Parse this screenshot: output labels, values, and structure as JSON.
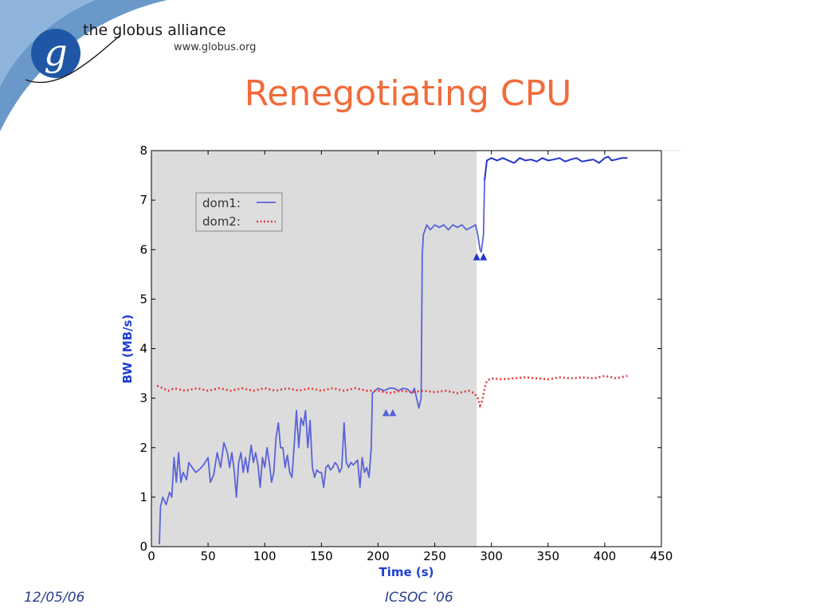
{
  "logo": {
    "letter": "g",
    "name": "the globus alliance",
    "url": "www.globus.org"
  },
  "slide": {
    "title": "Renegotiating CPU"
  },
  "footer": {
    "date": "12/05/06",
    "conference": "ICSOC ‘06"
  },
  "colors": {
    "title": "#f26b3a",
    "footer": "#2a3f8f",
    "dom1": "#5a63d8",
    "dom1_after": "#2233cc",
    "dom2": "#e03a3a",
    "shade": "#dcdcdc",
    "axis_label": "#1f3fd0"
  },
  "chart_data": {
    "type": "line",
    "title": "",
    "xlabel": "Time (s)",
    "ylabel": "BW (MB/s)",
    "xlim": [
      0,
      450
    ],
    "ylim": [
      0,
      8
    ],
    "xticks": [
      0,
      50,
      100,
      150,
      200,
      250,
      300,
      350,
      400,
      450
    ],
    "yticks": [
      0,
      1,
      2,
      3,
      4,
      5,
      6,
      7,
      8
    ],
    "grid": false,
    "legend_position": "top-left",
    "shaded_region": {
      "x": [
        0,
        287
      ],
      "color": "#dcdcdc"
    },
    "markers": [
      {
        "x": 207,
        "y": 2.7,
        "shape": "triangle"
      },
      {
        "x": 213,
        "y": 2.7,
        "shape": "triangle"
      },
      {
        "x": 287,
        "y": 5.85,
        "shape": "triangle"
      },
      {
        "x": 293,
        "y": 5.85,
        "shape": "triangle"
      }
    ],
    "series": [
      {
        "name": "dom1",
        "legend_label": "dom1:",
        "style": "solid",
        "points": [
          [
            7,
            0.05
          ],
          [
            8,
            0.8
          ],
          [
            10,
            1.0
          ],
          [
            13,
            0.85
          ],
          [
            16,
            1.1
          ],
          [
            18,
            1.0
          ],
          [
            20,
            1.8
          ],
          [
            22,
            1.3
          ],
          [
            24,
            1.9
          ],
          [
            26,
            1.3
          ],
          [
            28,
            1.5
          ],
          [
            31,
            1.35
          ],
          [
            33,
            1.7
          ],
          [
            36,
            1.6
          ],
          [
            39,
            1.5
          ],
          [
            42,
            1.55
          ],
          [
            46,
            1.65
          ],
          [
            50,
            1.8
          ],
          [
            52,
            1.3
          ],
          [
            55,
            1.45
          ],
          [
            58,
            1.9
          ],
          [
            61,
            1.6
          ],
          [
            64,
            2.1
          ],
          [
            67,
            1.9
          ],
          [
            69,
            1.6
          ],
          [
            71,
            1.9
          ],
          [
            73,
            1.55
          ],
          [
            75,
            1.0
          ],
          [
            77,
            1.7
          ],
          [
            79,
            1.9
          ],
          [
            81,
            1.5
          ],
          [
            83,
            1.8
          ],
          [
            85,
            1.5
          ],
          [
            88,
            2.05
          ],
          [
            90,
            1.7
          ],
          [
            92,
            1.9
          ],
          [
            94,
            1.65
          ],
          [
            96,
            1.2
          ],
          [
            98,
            1.8
          ],
          [
            100,
            1.6
          ],
          [
            102,
            2.0
          ],
          [
            104,
            1.7
          ],
          [
            106,
            1.3
          ],
          [
            108,
            1.5
          ],
          [
            110,
            2.2
          ],
          [
            112,
            2.5
          ],
          [
            114,
            2.0
          ],
          [
            116,
            2.0
          ],
          [
            118,
            1.6
          ],
          [
            120,
            1.85
          ],
          [
            122,
            1.5
          ],
          [
            124,
            1.4
          ],
          [
            126,
            2.05
          ],
          [
            128,
            2.75
          ],
          [
            130,
            2.0
          ],
          [
            132,
            2.6
          ],
          [
            134,
            2.45
          ],
          [
            136,
            2.75
          ],
          [
            138,
            2.0
          ],
          [
            140,
            2.55
          ],
          [
            142,
            1.6
          ],
          [
            144,
            1.4
          ],
          [
            146,
            1.55
          ],
          [
            148,
            1.5
          ],
          [
            150,
            1.5
          ],
          [
            152,
            1.2
          ],
          [
            154,
            1.6
          ],
          [
            156,
            1.65
          ],
          [
            158,
            1.55
          ],
          [
            160,
            1.6
          ],
          [
            162,
            1.7
          ],
          [
            164,
            1.65
          ],
          [
            166,
            1.5
          ],
          [
            168,
            1.6
          ],
          [
            170,
            2.5
          ],
          [
            172,
            1.7
          ],
          [
            174,
            1.6
          ],
          [
            176,
            1.7
          ],
          [
            178,
            1.65
          ],
          [
            180,
            1.7
          ],
          [
            182,
            1.75
          ],
          [
            184,
            1.2
          ],
          [
            186,
            1.8
          ],
          [
            188,
            1.5
          ],
          [
            190,
            1.6
          ],
          [
            192,
            1.4
          ],
          [
            194,
            2.0
          ],
          [
            195,
            3.1
          ],
          [
            200,
            3.2
          ],
          [
            205,
            3.15
          ],
          [
            210,
            3.2
          ],
          [
            214,
            3.2
          ],
          [
            218,
            3.15
          ],
          [
            222,
            3.2
          ],
          [
            226,
            3.18
          ],
          [
            230,
            3.1
          ],
          [
            232,
            3.2
          ],
          [
            234,
            3.0
          ],
          [
            236,
            2.8
          ],
          [
            238,
            3.0
          ],
          [
            239,
            5.9
          ],
          [
            240,
            6.3
          ],
          [
            243,
            6.5
          ],
          [
            246,
            6.4
          ],
          [
            250,
            6.5
          ],
          [
            254,
            6.45
          ],
          [
            258,
            6.5
          ],
          [
            262,
            6.4
          ],
          [
            266,
            6.5
          ],
          [
            270,
            6.45
          ],
          [
            274,
            6.5
          ],
          [
            278,
            6.4
          ],
          [
            282,
            6.45
          ],
          [
            286,
            6.5
          ],
          [
            288,
            6.3
          ],
          [
            290,
            6.0
          ],
          [
            291,
            5.95
          ],
          [
            293,
            6.3
          ],
          [
            294,
            7.4
          ],
          [
            296,
            7.8
          ],
          [
            300,
            7.85
          ],
          [
            305,
            7.8
          ],
          [
            310,
            7.85
          ],
          [
            315,
            7.8
          ],
          [
            320,
            7.75
          ],
          [
            325,
            7.85
          ],
          [
            330,
            7.8
          ],
          [
            335,
            7.82
          ],
          [
            340,
            7.78
          ],
          [
            345,
            7.85
          ],
          [
            350,
            7.8
          ],
          [
            355,
            7.82
          ],
          [
            360,
            7.85
          ],
          [
            365,
            7.78
          ],
          [
            370,
            7.82
          ],
          [
            375,
            7.85
          ],
          [
            380,
            7.78
          ],
          [
            385,
            7.8
          ],
          [
            390,
            7.82
          ],
          [
            395,
            7.75
          ],
          [
            400,
            7.85
          ],
          [
            403,
            7.88
          ],
          [
            406,
            7.8
          ],
          [
            410,
            7.82
          ],
          [
            415,
            7.85
          ],
          [
            420,
            7.85
          ]
        ]
      },
      {
        "name": "dom2",
        "legend_label": "dom2:",
        "style": "dotted",
        "points": [
          [
            5,
            3.25
          ],
          [
            10,
            3.2
          ],
          [
            15,
            3.15
          ],
          [
            20,
            3.2
          ],
          [
            30,
            3.15
          ],
          [
            40,
            3.2
          ],
          [
            50,
            3.15
          ],
          [
            60,
            3.2
          ],
          [
            70,
            3.15
          ],
          [
            80,
            3.2
          ],
          [
            90,
            3.15
          ],
          [
            100,
            3.2
          ],
          [
            110,
            3.15
          ],
          [
            120,
            3.2
          ],
          [
            130,
            3.15
          ],
          [
            140,
            3.2
          ],
          [
            150,
            3.15
          ],
          [
            160,
            3.2
          ],
          [
            170,
            3.15
          ],
          [
            180,
            3.2
          ],
          [
            190,
            3.15
          ],
          [
            200,
            3.15
          ],
          [
            210,
            3.1
          ],
          [
            220,
            3.15
          ],
          [
            230,
            3.12
          ],
          [
            240,
            3.15
          ],
          [
            250,
            3.12
          ],
          [
            260,
            3.15
          ],
          [
            270,
            3.1
          ],
          [
            280,
            3.15
          ],
          [
            285,
            3.1
          ],
          [
            288,
            3.0
          ],
          [
            290,
            2.85
          ],
          [
            292,
            2.95
          ],
          [
            294,
            3.2
          ],
          [
            296,
            3.35
          ],
          [
            300,
            3.4
          ],
          [
            310,
            3.38
          ],
          [
            320,
            3.4
          ],
          [
            330,
            3.42
          ],
          [
            340,
            3.4
          ],
          [
            350,
            3.38
          ],
          [
            360,
            3.42
          ],
          [
            370,
            3.4
          ],
          [
            380,
            3.42
          ],
          [
            390,
            3.4
          ],
          [
            400,
            3.45
          ],
          [
            410,
            3.4
          ],
          [
            420,
            3.45
          ]
        ]
      }
    ]
  }
}
